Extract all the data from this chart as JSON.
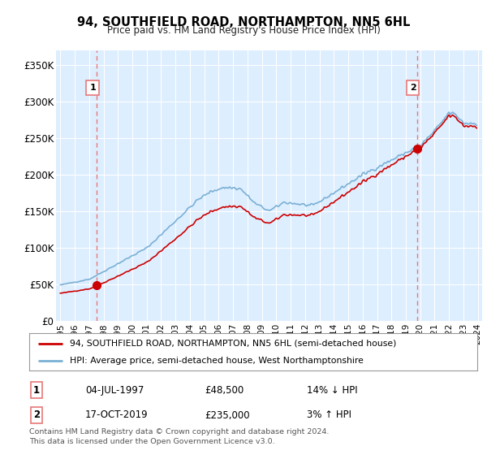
{
  "title": "94, SOUTHFIELD ROAD, NORTHAMPTON, NN5 6HL",
  "subtitle": "Price paid vs. HM Land Registry's House Price Index (HPI)",
  "legend_line1": "94, SOUTHFIELD ROAD, NORTHAMPTON, NN5 6HL (semi-detached house)",
  "legend_line2": "HPI: Average price, semi-detached house, West Northamptonshire",
  "footer": "Contains HM Land Registry data © Crown copyright and database right 2024.\nThis data is licensed under the Open Government Licence v3.0.",
  "table": [
    {
      "num": "1",
      "date": "04-JUL-1997",
      "price": "£48,500",
      "change": "14% ↓ HPI"
    },
    {
      "num": "2",
      "date": "17-OCT-2019",
      "price": "£235,000",
      "change": "3% ↑ HPI"
    }
  ],
  "ylim": [
    0,
    370000
  ],
  "yticks": [
    0,
    50000,
    100000,
    150000,
    200000,
    250000,
    300000,
    350000
  ],
  "ytick_labels": [
    "£0",
    "£50K",
    "£100K",
    "£150K",
    "£200K",
    "£250K",
    "£300K",
    "£350K"
  ],
  "sale1_year": 1997.542,
  "sale1_price": 48500,
  "sale2_year": 2019.79,
  "sale2_price": 235000,
  "red_color": "#cc0000",
  "blue_color": "#7ab0d4",
  "bg_color": "#ddeeff",
  "grid_color": "#ffffff",
  "sale_marker_color": "#cc0000",
  "dashed_line_color": "#e87878"
}
